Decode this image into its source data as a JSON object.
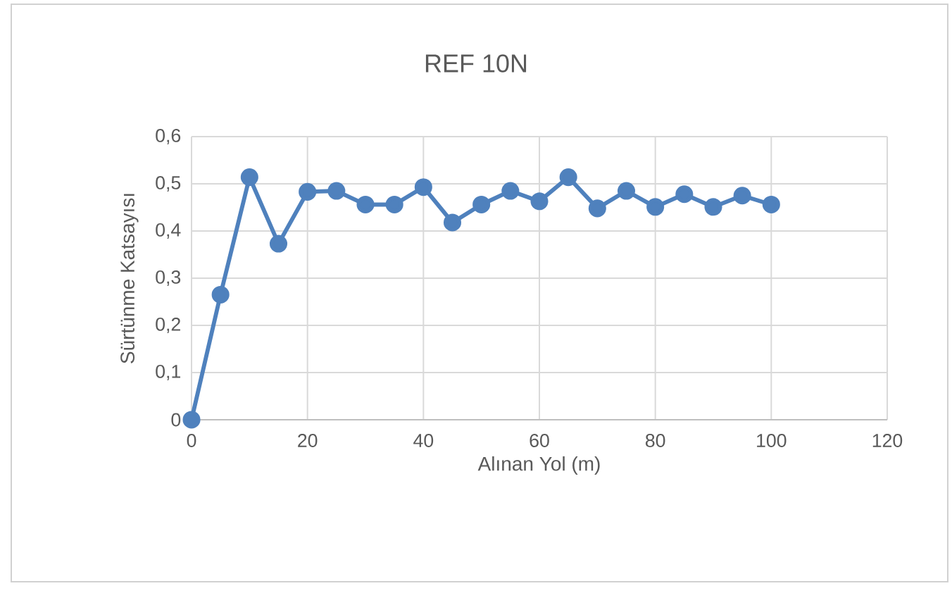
{
  "chart_data": {
    "type": "line",
    "title": "REF 10N",
    "xlabel": "Alınan Yol (m)",
    "ylabel": "Sürtünme Katsayısı",
    "x": [
      0,
      5,
      10,
      15,
      20,
      25,
      30,
      35,
      40,
      45,
      50,
      55,
      60,
      65,
      70,
      75,
      80,
      85,
      90,
      95,
      100
    ],
    "series": [
      {
        "color": "#4f81bd",
        "values": [
          0,
          0.265,
          0.514,
          0.373,
          0.483,
          0.485,
          0.456,
          0.456,
          0.493,
          0.418,
          0.456,
          0.485,
          0.463,
          0.514,
          0.448,
          0.485,
          0.451,
          0.478,
          0.451,
          0.475,
          0.456
        ]
      }
    ],
    "xlim": [
      0,
      120
    ],
    "xticks": [
      0,
      20,
      40,
      60,
      80,
      100,
      120
    ],
    "ylim": [
      0,
      0.6
    ],
    "yticks": [
      0,
      {
        "value": 0.1,
        "label": "0,1"
      },
      {
        "value": 0.2,
        "label": "0,2"
      },
      {
        "value": 0.3,
        "label": "0,3"
      },
      {
        "value": 0.4,
        "label": "0,4"
      },
      {
        "value": 0.5,
        "label": "0,5"
      },
      {
        "value": 0.6,
        "label": "0,6"
      }
    ],
    "grid": true,
    "marker": "circle",
    "line_style": "solid"
  }
}
